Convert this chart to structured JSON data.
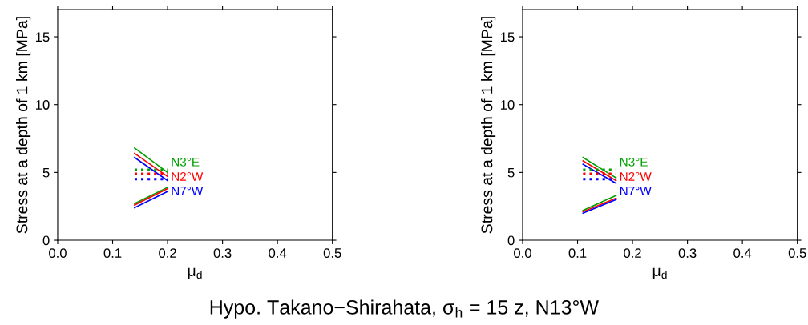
{
  "chart_data": [
    {
      "type": "line",
      "xlabel": "μ$_{d}$",
      "ylabel": "Stress at a depth of 1 km [MPa]",
      "xlim": [
        0,
        0.5
      ],
      "ylim": [
        0,
        17
      ],
      "xticks": [
        {
          "value": 0,
          "label": "0.0"
        },
        {
          "value": 0.1,
          "label": "0.1"
        },
        {
          "value": 0.2,
          "label": "0.2"
        },
        {
          "value": 0.3,
          "label": "0.3"
        },
        {
          "value": 0.4,
          "label": "0.4"
        },
        {
          "value": 0.5,
          "label": "0.5"
        }
      ],
      "yticks": [
        0,
        5,
        10,
        15
      ],
      "grid": false,
      "legend": false,
      "annotations": [
        "Hypo. Takano−Shirahata, σ$_{h}$ = 15 z, N13°W"
      ],
      "series": [
        {
          "color": "#00a000",
          "x": [
            0.14,
            0.2
          ],
          "values": [
            6.8,
            5.0
          ],
          "line_style": "solid"
        },
        {
          "color": "#ff0000",
          "x": [
            0.14,
            0.2
          ],
          "values": [
            6.4,
            4.7
          ],
          "line_style": "solid"
        },
        {
          "color": "#0000ff",
          "x": [
            0.14,
            0.2
          ],
          "values": [
            6.1,
            4.4
          ],
          "line_style": "solid"
        },
        {
          "name": "N3°E",
          "color": "#00a000",
          "x": [
            0.14,
            0.2
          ],
          "values": [
            5.2,
            5.2
          ],
          "line_style": "dotted"
        },
        {
          "name": "N2°W",
          "color": "#ff0000",
          "x": [
            0.14,
            0.2
          ],
          "values": [
            4.9,
            4.9
          ],
          "line_style": "dotted"
        },
        {
          "name": "N7°W",
          "color": "#0000ff",
          "x": [
            0.14,
            0.2
          ],
          "values": [
            4.5,
            4.5
          ],
          "line_style": "dotted"
        },
        {
          "color": "#00a000",
          "x": [
            0.14,
            0.2
          ],
          "values": [
            2.7,
            3.9
          ],
          "line_style": "solid"
        },
        {
          "color": "#ff0000",
          "x": [
            0.14,
            0.2
          ],
          "values": [
            2.6,
            3.8
          ],
          "line_style": "solid"
        },
        {
          "color": "#0000ff",
          "x": [
            0.14,
            0.2
          ],
          "values": [
            2.4,
            3.6
          ],
          "line_style": "solid"
        }
      ]
    },
    {
      "type": "line",
      "xlabel": "μ$_{d}$",
      "ylabel": "Stress at a depth of 1 km [MPa]",
      "xlim": [
        0,
        0.5
      ],
      "ylim": [
        0,
        17
      ],
      "xticks": [
        {
          "value": 0,
          "label": "0.0"
        },
        {
          "value": 0.1,
          "label": "0.1"
        },
        {
          "value": 0.2,
          "label": "0.2"
        },
        {
          "value": 0.3,
          "label": "0.3"
        },
        {
          "value": 0.4,
          "label": "0.4"
        },
        {
          "value": 0.5,
          "label": "0.5"
        }
      ],
      "yticks": [
        0,
        5,
        10,
        15
      ],
      "grid": false,
      "legend": false,
      "series": [
        {
          "color": "#00a000",
          "x": [
            0.11,
            0.17
          ],
          "values": [
            6.1,
            4.6
          ],
          "line_style": "solid"
        },
        {
          "color": "#ff0000",
          "x": [
            0.11,
            0.17
          ],
          "values": [
            5.85,
            4.4
          ],
          "line_style": "solid"
        },
        {
          "color": "#0000ff",
          "x": [
            0.11,
            0.17
          ],
          "values": [
            5.6,
            4.2
          ],
          "line_style": "solid"
        },
        {
          "name": "N3°E",
          "color": "#00a000",
          "x": [
            0.11,
            0.17
          ],
          "values": [
            5.2,
            5.2
          ],
          "line_style": "dotted"
        },
        {
          "name": "N2°W",
          "color": "#ff0000",
          "x": [
            0.11,
            0.17
          ],
          "values": [
            4.9,
            4.9
          ],
          "line_style": "dotted"
        },
        {
          "name": "N7°W",
          "color": "#0000ff",
          "x": [
            0.11,
            0.17
          ],
          "values": [
            4.5,
            4.5
          ],
          "line_style": "dotted"
        },
        {
          "color": "#00a000",
          "x": [
            0.11,
            0.17
          ],
          "values": [
            2.2,
            3.3
          ],
          "line_style": "solid"
        },
        {
          "color": "#ff0000",
          "x": [
            0.11,
            0.17
          ],
          "values": [
            2.1,
            3.1
          ],
          "line_style": "solid"
        },
        {
          "color": "#0000ff",
          "x": [
            0.11,
            0.17
          ],
          "values": [
            2.0,
            3.0
          ],
          "line_style": "solid"
        }
      ]
    }
  ]
}
